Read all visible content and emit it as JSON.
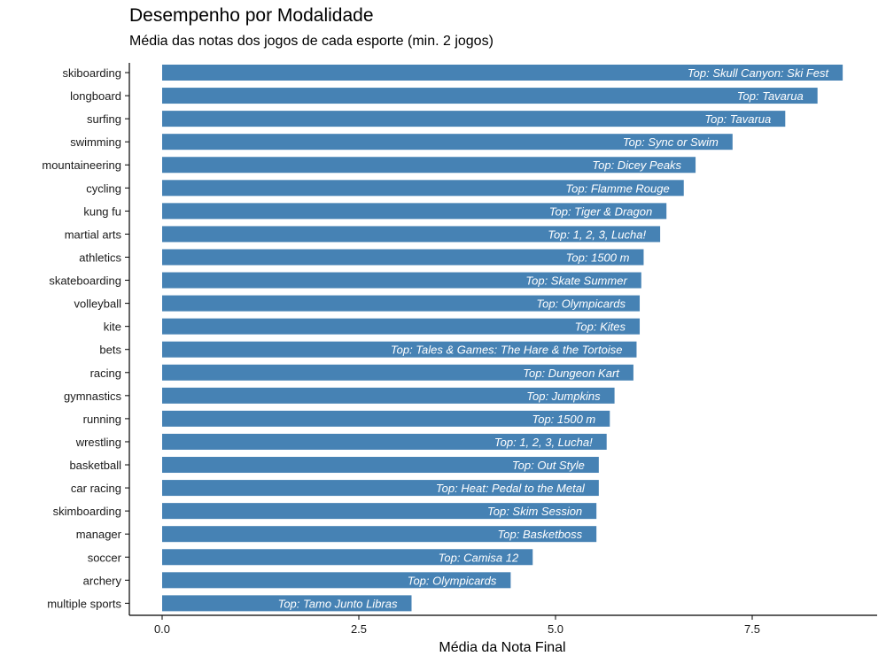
{
  "title": "Desempenho por Modalidade",
  "subtitle": "Média das notas dos jogos de cada esporte (min. 2 jogos)",
  "colors": {
    "bar": "#4682B4",
    "label": "#ffffff",
    "axis": "#000000"
  },
  "chart_data": {
    "type": "bar",
    "orientation": "horizontal",
    "title": "Desempenho por Modalidade",
    "subtitle": "Média das notas dos jogos de cada esporte (min. 2 jogos)",
    "xlabel": "Média da Nota Final",
    "ylabel": "",
    "xlim": [
      0,
      9
    ],
    "xticks": [
      "0.0",
      "2.5",
      "5.0",
      "7.5"
    ],
    "xtick_values": [
      0,
      2.5,
      5,
      7.5
    ],
    "grid": false,
    "categories": [
      "skiboarding",
      "longboard",
      "surfing",
      "swimming",
      "mountaineering",
      "cycling",
      "kung fu",
      "martial arts",
      "athletics",
      "skateboarding",
      "volleyball",
      "kite",
      "bets",
      "racing",
      "gymnastics",
      "running",
      "wrestling",
      "basketball",
      "car racing",
      "skimboarding",
      "manager",
      "soccer",
      "archery",
      "multiple sports"
    ],
    "values": [
      8.65,
      8.33,
      7.92,
      7.25,
      6.78,
      6.63,
      6.41,
      6.33,
      6.12,
      6.09,
      6.07,
      6.07,
      6.03,
      5.99,
      5.75,
      5.69,
      5.65,
      5.55,
      5.55,
      5.52,
      5.52,
      4.71,
      4.43,
      3.17
    ],
    "bar_labels": [
      "Top: Skull Canyon: Ski Fest",
      "Top: Tavarua",
      "Top: Tavarua",
      "Top: Sync or Swim",
      "Top: Dicey Peaks",
      "Top: Flamme Rouge",
      "Top: Tiger & Dragon",
      "Top: 1, 2, 3, Lucha!",
      "Top: 1500 m",
      "Top: Skate Summer",
      "Top: Olympicards",
      "Top: Kites",
      "Top: Tales & Games: The Hare & the Tortoise",
      "Top: Dungeon Kart",
      "Top: Jumpkins",
      "Top: 1500 m",
      "Top: 1, 2, 3, Lucha!",
      "Top: Out Style",
      "Top: Heat: Pedal to the Metal",
      "Top: Skim Session",
      "Top: Basketboss",
      "Top: Camisa 12",
      "Top: Olympicards",
      "Top: Tamo Junto Libras"
    ]
  }
}
